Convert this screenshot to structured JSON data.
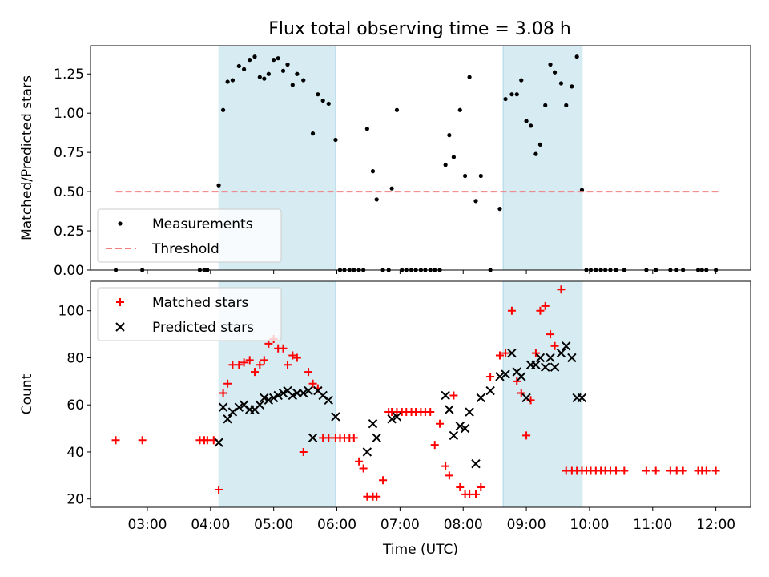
{
  "figure": {
    "title": "Flux total observing time = 3.08 h"
  },
  "chart_data": [
    {
      "type": "scatter",
      "panel": "top",
      "ylabel": "Matched/Predicted stars",
      "xlabel": "",
      "ylim": [
        0,
        1.43
      ],
      "xlim": [
        2.1,
        12.55
      ],
      "yticks": [
        0.0,
        0.25,
        0.5,
        0.75,
        1.0,
        1.25
      ],
      "ytick_labels": [
        "0.00",
        "0.25",
        "0.50",
        "0.75",
        "1.00",
        "1.25"
      ],
      "grid": false,
      "legend": "lower-left",
      "shaded_spans": [
        [
          4.133,
          5.98
        ],
        [
          8.633,
          9.883
        ]
      ],
      "shade_color": "#add8e6",
      "series": [
        {
          "name": "Measurements",
          "color": "#000000",
          "marker": "dot",
          "x": [
            2.5,
            2.92,
            3.83,
            3.9,
            3.95,
            4.13,
            4.2,
            4.27,
            4.35,
            4.45,
            4.53,
            4.62,
            4.7,
            4.78,
            4.85,
            4.92,
            5.0,
            5.07,
            5.15,
            5.22,
            5.3,
            5.37,
            5.47,
            5.62,
            5.7,
            5.78,
            5.87,
            5.98,
            6.05,
            6.12,
            6.2,
            6.27,
            6.35,
            6.42,
            6.48,
            6.57,
            6.63,
            6.73,
            6.82,
            6.87,
            6.95,
            7.03,
            7.1,
            7.18,
            7.25,
            7.33,
            7.4,
            7.48,
            7.55,
            7.63,
            7.72,
            7.78,
            7.85,
            7.95,
            8.03,
            8.1,
            8.2,
            8.28,
            8.43,
            8.58,
            8.67,
            8.77,
            8.85,
            8.92,
            9.0,
            9.07,
            9.15,
            9.22,
            9.3,
            9.38,
            9.45,
            9.55,
            9.63,
            9.72,
            9.8,
            9.88,
            9.95,
            10.02,
            10.1,
            10.18,
            10.25,
            10.33,
            10.42,
            10.55,
            10.9,
            11.05,
            11.28,
            11.38,
            11.48,
            11.72,
            11.78,
            11.85,
            12.0
          ],
          "y": [
            0.0,
            0.0,
            0.0,
            0.0,
            0.0,
            0.54,
            1.02,
            1.2,
            1.21,
            1.3,
            1.28,
            1.34,
            1.36,
            1.23,
            1.22,
            1.25,
            1.34,
            1.35,
            1.27,
            1.31,
            1.18,
            1.25,
            1.21,
            0.87,
            1.12,
            1.08,
            1.06,
            0.83,
            0.0,
            0.0,
            0.0,
            0.0,
            0.0,
            0.0,
            0.9,
            0.63,
            0.45,
            0.0,
            0.0,
            0.52,
            1.02,
            0.0,
            0.0,
            0.0,
            0.0,
            0.0,
            0.0,
            0.0,
            0.0,
            0.0,
            0.67,
            0.86,
            0.72,
            1.02,
            0.6,
            1.23,
            0.44,
            0.6,
            0.0,
            0.39,
            1.09,
            1.12,
            1.12,
            1.21,
            0.95,
            0.92,
            0.74,
            0.8,
            1.05,
            1.31,
            1.26,
            1.19,
            1.05,
            1.17,
            1.36,
            0.51,
            0.0,
            0.0,
            0.0,
            0.0,
            0.0,
            0.0,
            0.0,
            0.0,
            0.0,
            0.0,
            0.0,
            0.0,
            0.0,
            0.0,
            0.0,
            0.0,
            0.0
          ]
        },
        {
          "name": "Threshold",
          "color": "#f08080",
          "line": "dashed",
          "x": [
            2.5,
            12.05
          ],
          "y": [
            0.5,
            0.5
          ]
        }
      ]
    },
    {
      "type": "scatter",
      "panel": "bottom",
      "ylabel": "Count",
      "xlabel": "Time (UTC)",
      "ylim": [
        16.5,
        112.5
      ],
      "xlim": [
        2.1,
        12.55
      ],
      "yticks": [
        20,
        40,
        60,
        80,
        100
      ],
      "ytick_labels": [
        "20",
        "40",
        "60",
        "80",
        "100"
      ],
      "xticks": [
        3,
        4,
        5,
        6,
        7,
        8,
        9,
        10,
        11,
        12
      ],
      "xtick_labels": [
        "03:00",
        "04:00",
        "05:00",
        "06:00",
        "07:00",
        "08:00",
        "09:00",
        "10:00",
        "11:00",
        "12:00"
      ],
      "grid": false,
      "legend": "top-left",
      "shaded_spans": [
        [
          4.133,
          5.98
        ],
        [
          8.633,
          9.883
        ]
      ],
      "shade_color": "#add8e6",
      "series": [
        {
          "name": "Matched stars",
          "color": "#ff0000",
          "marker": "plus",
          "x": [
            2.5,
            2.92,
            3.83,
            3.9,
            3.95,
            4.05,
            4.13,
            4.2,
            4.27,
            4.35,
            4.45,
            4.53,
            4.62,
            4.7,
            4.78,
            4.85,
            4.92,
            5.0,
            5.07,
            5.15,
            5.22,
            5.3,
            5.37,
            5.47,
            5.55,
            5.62,
            5.7,
            5.78,
            5.87,
            5.98,
            6.05,
            6.12,
            6.2,
            6.27,
            6.35,
            6.42,
            6.48,
            6.57,
            6.63,
            6.73,
            6.82,
            6.87,
            6.95,
            7.03,
            7.1,
            7.18,
            7.25,
            7.33,
            7.4,
            7.48,
            7.55,
            7.63,
            7.72,
            7.78,
            7.85,
            7.95,
            8.03,
            8.1,
            8.2,
            8.28,
            8.43,
            8.58,
            8.67,
            8.77,
            8.85,
            8.92,
            9.0,
            9.07,
            9.15,
            9.22,
            9.3,
            9.38,
            9.45,
            9.55,
            9.63,
            9.72,
            9.8,
            9.88,
            9.95,
            10.02,
            10.1,
            10.18,
            10.25,
            10.33,
            10.42,
            10.55,
            10.9,
            11.05,
            11.28,
            11.38,
            11.48,
            11.72,
            11.78,
            11.85,
            12.0
          ],
          "y": [
            45,
            45,
            45,
            45,
            45,
            45,
            24,
            65,
            69,
            77,
            77,
            78,
            79,
            74,
            77,
            79,
            86,
            88,
            84,
            84,
            77,
            81,
            80,
            40,
            74,
            69,
            67,
            46,
            46,
            46,
            46,
            46,
            46,
            46,
            36,
            33,
            21,
            21,
            21,
            28,
            57,
            57,
            57,
            57,
            57,
            57,
            57,
            57,
            57,
            57,
            43,
            52,
            34,
            30,
            64,
            25,
            22,
            22,
            22,
            25,
            72,
            81,
            82,
            100,
            70,
            65,
            47,
            62,
            82,
            100,
            102,
            90,
            85,
            109,
            32,
            32,
            32,
            32,
            32,
            32,
            32,
            32,
            32,
            32,
            32,
            32,
            32,
            32,
            32,
            32,
            32,
            32,
            32,
            32,
            32
          ],
          "x_count_note": ""
        },
        {
          "name": "Predicted stars",
          "color": "#000000",
          "marker": "x",
          "x": [
            4.13,
            4.2,
            4.27,
            4.35,
            4.45,
            4.53,
            4.62,
            4.7,
            4.78,
            4.85,
            4.92,
            5.0,
            5.07,
            5.15,
            5.22,
            5.3,
            5.37,
            5.47,
            5.55,
            5.62,
            5.7,
            5.78,
            5.87,
            5.98,
            6.48,
            6.57,
            6.63,
            6.87,
            6.95,
            7.72,
            7.78,
            7.85,
            7.95,
            8.03,
            8.1,
            8.2,
            8.28,
            8.43,
            8.58,
            8.67,
            8.77,
            8.85,
            8.92,
            9.0,
            9.07,
            9.15,
            9.22,
            9.3,
            9.38,
            9.45,
            9.55,
            9.63,
            9.72,
            9.8,
            9.88
          ],
          "y": [
            44,
            59,
            54,
            57,
            59,
            60,
            58,
            58,
            60,
            63,
            62,
            63,
            64,
            65,
            66,
            64,
            65,
            65,
            66,
            46,
            66,
            64,
            62,
            55,
            40,
            52,
            46,
            54,
            55,
            64,
            58,
            47,
            51,
            50,
            57,
            35,
            63,
            66,
            72,
            73,
            82,
            74,
            72,
            63,
            77,
            77,
            80,
            76,
            80,
            76,
            82,
            85,
            80,
            63,
            63
          ]
        }
      ]
    }
  ]
}
